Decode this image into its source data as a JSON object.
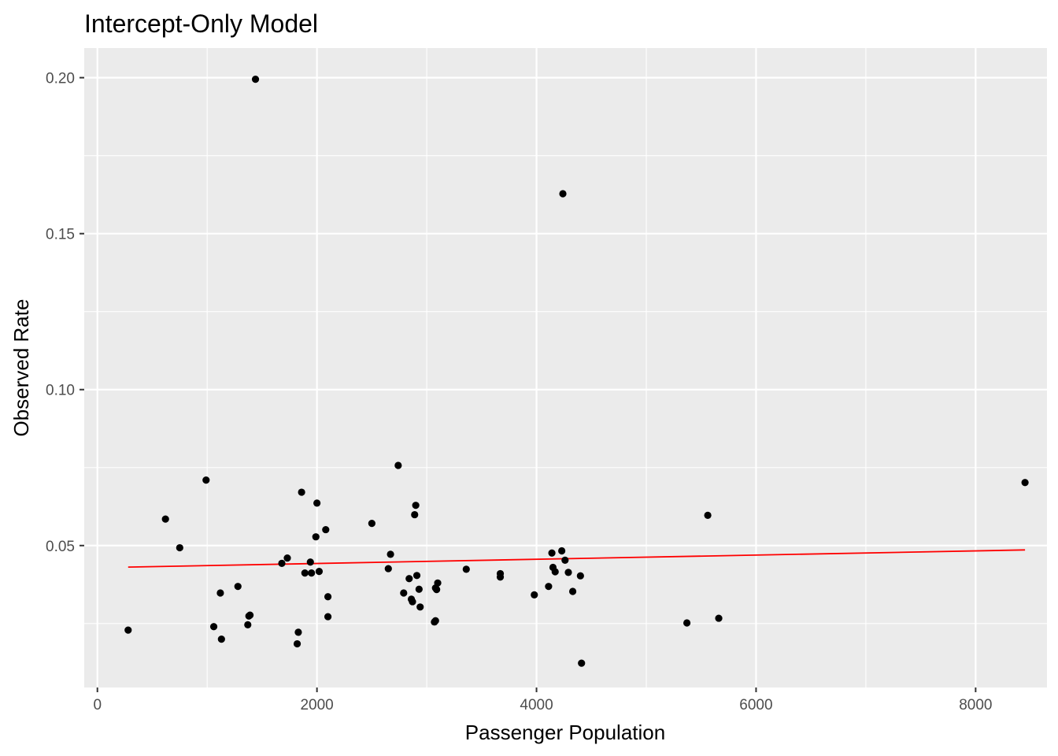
{
  "chart_data": {
    "type": "scatter",
    "title": "Intercept-Only Model",
    "xlabel": "Passenger Population",
    "ylabel": "Observed Rate",
    "xlim": [
      -120,
      8650
    ],
    "ylim": [
      0.0045,
      0.2095
    ],
    "x_ticks": [
      0,
      2000,
      4000,
      6000,
      8000
    ],
    "x_tick_labels": [
      "0",
      "2000",
      "4000",
      "6000",
      "8000"
    ],
    "y_ticks": [
      0.05,
      0.1,
      0.15,
      0.2
    ],
    "y_tick_labels": [
      "0.05",
      "0.10",
      "0.15",
      "0.20"
    ],
    "grid": true,
    "legend": "none",
    "colors": {
      "panel": "#ebebeb",
      "grid": "#ffffff",
      "points": "#000000",
      "fit_line": "#ff0000"
    },
    "points": [
      [
        1440,
        0.1995
      ],
      [
        4240,
        0.1628
      ],
      [
        8450,
        0.0702
      ],
      [
        2740,
        0.0757
      ],
      [
        990,
        0.071
      ],
      [
        1860,
        0.0671
      ],
      [
        2000,
        0.0636
      ],
      [
        2900,
        0.0629
      ],
      [
        2890,
        0.0599
      ],
      [
        5560,
        0.0597
      ],
      [
        620,
        0.0585
      ],
      [
        2500,
        0.0571
      ],
      [
        2080,
        0.0551
      ],
      [
        1990,
        0.0528
      ],
      [
        750,
        0.0493
      ],
      [
        4230,
        0.0483
      ],
      [
        4140,
        0.0476
      ],
      [
        2670,
        0.0472
      ],
      [
        1730,
        0.046
      ],
      [
        4260,
        0.0453
      ],
      [
        1680,
        0.0443
      ],
      [
        1940,
        0.0447
      ],
      [
        4150,
        0.043
      ],
      [
        2650,
        0.0426
      ],
      [
        3360,
        0.0424
      ],
      [
        4170,
        0.0416
      ],
      [
        4290,
        0.0414
      ],
      [
        2020,
        0.0417
      ],
      [
        1890,
        0.0412
      ],
      [
        1950,
        0.0412
      ],
      [
        3670,
        0.041
      ],
      [
        2910,
        0.0404
      ],
      [
        4400,
        0.0403
      ],
      [
        3670,
        0.0399
      ],
      [
        2840,
        0.0394
      ],
      [
        3100,
        0.038
      ],
      [
        1280,
        0.0369
      ],
      [
        4110,
        0.0369
      ],
      [
        3080,
        0.0364
      ],
      [
        3090,
        0.0359
      ],
      [
        2930,
        0.036
      ],
      [
        4330,
        0.0353
      ],
      [
        1120,
        0.0348
      ],
      [
        2790,
        0.0348
      ],
      [
        3980,
        0.0342
      ],
      [
        2100,
        0.0336
      ],
      [
        2860,
        0.0328
      ],
      [
        2870,
        0.032
      ],
      [
        2940,
        0.0303
      ],
      [
        1390,
        0.0277
      ],
      [
        1380,
        0.0274
      ],
      [
        2100,
        0.0272
      ],
      [
        5660,
        0.0267
      ],
      [
        3080,
        0.0259
      ],
      [
        3070,
        0.0255
      ],
      [
        5370,
        0.0252
      ],
      [
        1370,
        0.0246
      ],
      [
        1060,
        0.024
      ],
      [
        280,
        0.0229
      ],
      [
        1830,
        0.0222
      ],
      [
        1130,
        0.02
      ],
      [
        1820,
        0.0185
      ],
      [
        4410,
        0.0123
      ]
    ],
    "fit_line": {
      "x": [
        280,
        8450
      ],
      "y": [
        0.0431,
        0.0486
      ]
    }
  }
}
